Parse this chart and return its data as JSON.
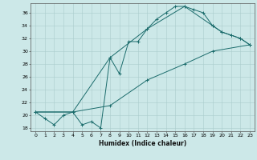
{
  "xlabel": "Humidex (Indice chaleur)",
  "background_color": "#cce8e8",
  "line_color": "#1a6b6b",
  "xlim": [
    -0.5,
    23.5
  ],
  "ylim": [
    17.5,
    37.5
  ],
  "xticks": [
    0,
    1,
    2,
    3,
    4,
    5,
    6,
    7,
    8,
    9,
    10,
    11,
    12,
    13,
    14,
    15,
    16,
    17,
    18,
    19,
    20,
    21,
    22,
    23
  ],
  "yticks": [
    18,
    20,
    22,
    24,
    26,
    28,
    30,
    32,
    34,
    36
  ],
  "series1_x": [
    0,
    1,
    2,
    3,
    4,
    5,
    6,
    7,
    8,
    9,
    10,
    11,
    12,
    13,
    14,
    15,
    16,
    17,
    18,
    19,
    20,
    21,
    22,
    23
  ],
  "series1_y": [
    20.5,
    19.5,
    18.5,
    20.0,
    20.5,
    18.5,
    19.0,
    18.0,
    29.0,
    26.5,
    31.5,
    31.5,
    33.5,
    35.0,
    36.0,
    37.0,
    37.0,
    36.5,
    36.0,
    34.0,
    33.0,
    32.5,
    32.0,
    31.0
  ],
  "series2_x": [
    0,
    4,
    8,
    12,
    16,
    19,
    20,
    21,
    22,
    23
  ],
  "series2_y": [
    20.5,
    20.5,
    29.0,
    33.5,
    37.0,
    34.0,
    33.0,
    32.5,
    32.0,
    31.0
  ],
  "series3_x": [
    0,
    4,
    8,
    12,
    16,
    19,
    23
  ],
  "series3_y": [
    20.5,
    20.5,
    21.5,
    25.5,
    28.0,
    30.0,
    31.0
  ]
}
